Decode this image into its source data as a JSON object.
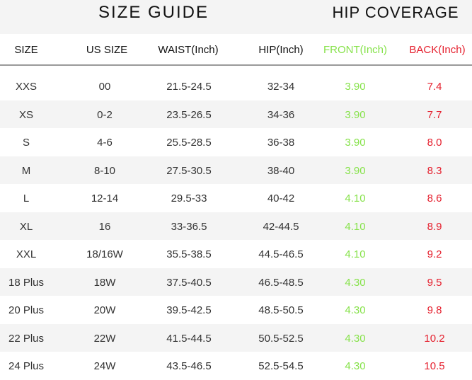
{
  "titles": {
    "size_guide": "SIZE GUIDE",
    "hip_coverage": "HIP COVERAGE"
  },
  "colors": {
    "front": "#86e24a",
    "back": "#e5202e",
    "alt_row": "#f4f4f4"
  },
  "headers": [
    "SIZE",
    "US SIZE",
    "WAIST(Inch)",
    "HIP(Inch)",
    "FRONT(Inch)",
    "BACK(Inch)"
  ],
  "rows": [
    [
      "XXS",
      "00",
      "21.5-24.5",
      "32-34",
      "3.90",
      "7.4"
    ],
    [
      "XS",
      "0-2",
      "23.5-26.5",
      "34-36",
      "3.90",
      "7.7"
    ],
    [
      "S",
      "4-6",
      "25.5-28.5",
      "36-38",
      "3.90",
      "8.0"
    ],
    [
      "M",
      "8-10",
      "27.5-30.5",
      "38-40",
      "3.90",
      "8.3"
    ],
    [
      "L",
      "12-14",
      "29.5-33",
      "40-42",
      "4.10",
      "8.6"
    ],
    [
      "XL",
      "16",
      "33-36.5",
      "42-44.5",
      "4.10",
      "8.9"
    ],
    [
      "XXL",
      "18/16W",
      "35.5-38.5",
      "44.5-46.5",
      "4.10",
      "9.2"
    ],
    [
      "18 Plus",
      "18W",
      "37.5-40.5",
      "46.5-48.5",
      "4.30",
      "9.5"
    ],
    [
      "20 Plus",
      "20W",
      "39.5-42.5",
      "48.5-50.5",
      "4.30",
      "9.8"
    ],
    [
      "22 Plus",
      "22W",
      "41.5-44.5",
      "50.5-52.5",
      "4.30",
      "10.2"
    ],
    [
      "24 Plus",
      "24W",
      "43.5-46.5",
      "52.5-54.5",
      "4.30",
      "10.5"
    ]
  ]
}
